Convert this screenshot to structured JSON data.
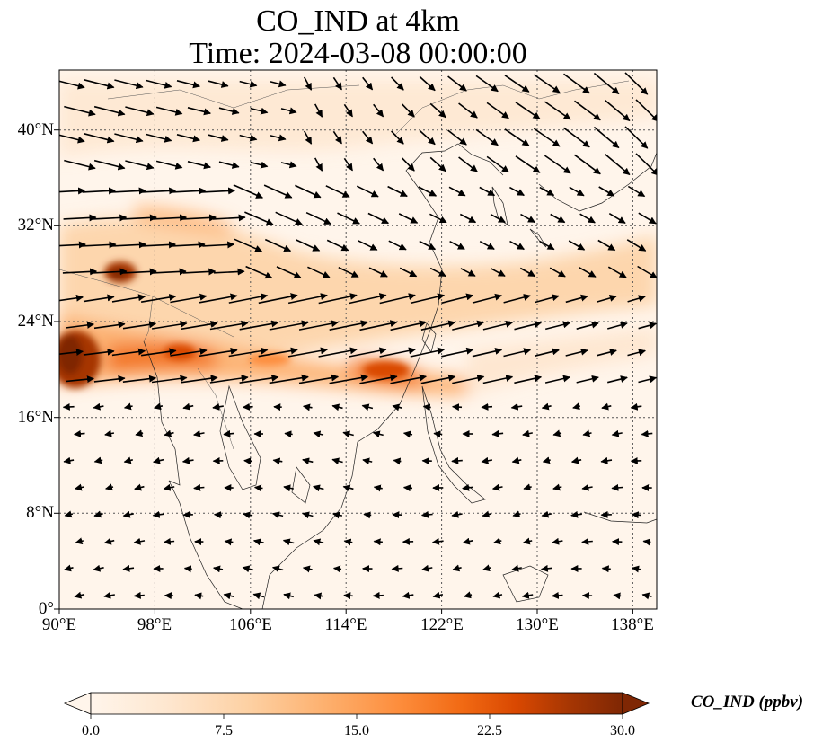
{
  "title": {
    "line1": "CO_IND at 4km",
    "line2": "Time: 2024-03-08 00:00:00"
  },
  "map": {
    "variable": "CO_IND",
    "level": "4km",
    "time": "2024-03-08 00:00:00",
    "lon_range": [
      90,
      140
    ],
    "lat_range": [
      0,
      45
    ],
    "gridlines": "dotted",
    "lon_ticks": [
      "90°E",
      "98°E",
      "106°E",
      "114°E",
      "122°E",
      "130°E",
      "138°E"
    ],
    "lat_ticks": [
      "0°",
      "8°N",
      "16°N",
      "24°N",
      "32°N",
      "40°N"
    ],
    "overlay": "wind vectors (black arrows)",
    "colormap": [
      "#fff5eb",
      "#fee6ce",
      "#fdd0a2",
      "#fdae6b",
      "#fd8d3c",
      "#f16913",
      "#d94801",
      "#a63603",
      "#7f2704"
    ]
  },
  "colorbar": {
    "label": "CO_IND (ppbv)",
    "ticks": [
      "0.0",
      "7.5",
      "15.0",
      "22.5",
      "30.0"
    ],
    "range": [
      0,
      30
    ],
    "extend": "both"
  }
}
